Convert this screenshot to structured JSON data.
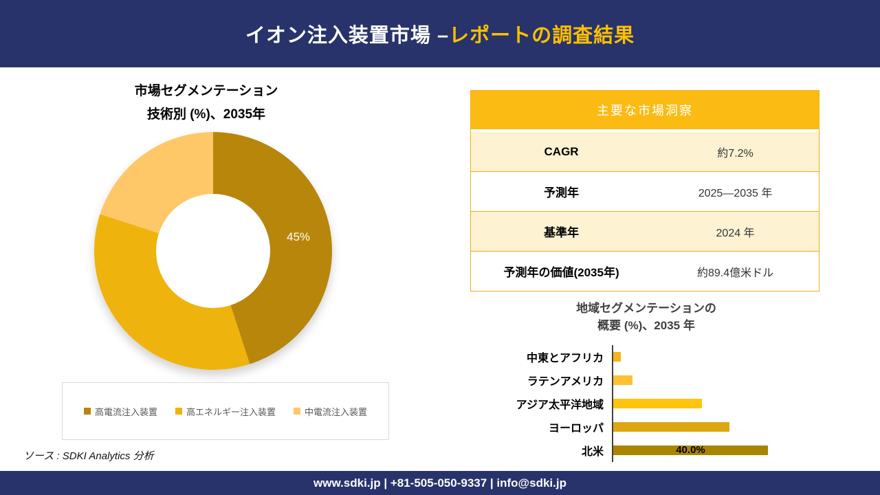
{
  "header": {
    "title_part1": "イオン注入装置市場 –",
    "title_part2": "レポートの調査結果"
  },
  "colors": {
    "navy": "#27336A",
    "title-accent": "#FFC000",
    "gold": "#FCBB13",
    "cream": "#FDF2D2",
    "table-border": "#F2AC18",
    "legend-border": "#D9D9D9",
    "legend-text": "#595959",
    "chart-title-gray": "#404040",
    "axis": "#404040"
  },
  "chart_data": [
    {
      "type": "donut",
      "title": "市場セグメンテーション 技術別 (%)、2035年",
      "title_line1": "市場セグメンテーション",
      "title_line2": "技術別 (%)、2035年",
      "unit": "%",
      "legend_position": "bottom",
      "segments": [
        {
          "label": "高電流注入装置",
          "value": 45,
          "color": "#B8860B",
          "data_label": "45%"
        },
        {
          "label": "高エネルギー注入装置",
          "value": 35,
          "color": "#EFB30D",
          "data_label": ""
        },
        {
          "label": "中電流注入装置",
          "value": 20,
          "color": "#FEC868",
          "data_label": ""
        }
      ]
    },
    {
      "type": "bar",
      "orientation": "horizontal",
      "title": "地域セグメンテーションの 概要 (%)、2035 年",
      "title_line1": "地域セグメンテーションの",
      "title_line2": "概要 (%)、2035 年",
      "categories": [
        "中東とアフリカ",
        "ラテンアメリカ",
        "アジア太平洋地域",
        "ヨーロッパ",
        "北米"
      ],
      "values": [
        2,
        5,
        23,
        30,
        40
      ],
      "colors": [
        "#F5B31C",
        "#FCC233",
        "#FFC40E",
        "#DEA712",
        "#AA8500"
      ],
      "data_labels": [
        "",
        "",
        "",
        "",
        "40.0%"
      ],
      "xlim": [
        0,
        45
      ],
      "grid": false
    }
  ],
  "insights_table": {
    "header": "主要な市場洞察",
    "rows": [
      {
        "label": "CAGR",
        "value": "約7.2%"
      },
      {
        "label": "予測年",
        "value": "2025—2035 年"
      },
      {
        "label": "基準年",
        "value": "2024 年"
      },
      {
        "label": "予測年の価値(2035年)",
        "value": "約89.4億米ドル"
      }
    ]
  },
  "source": {
    "text": "ソース : SDKI Analytics 分析"
  },
  "footer": {
    "text": "www.sdki.jp | +81-505-050-9337 | info@sdki.jp"
  }
}
